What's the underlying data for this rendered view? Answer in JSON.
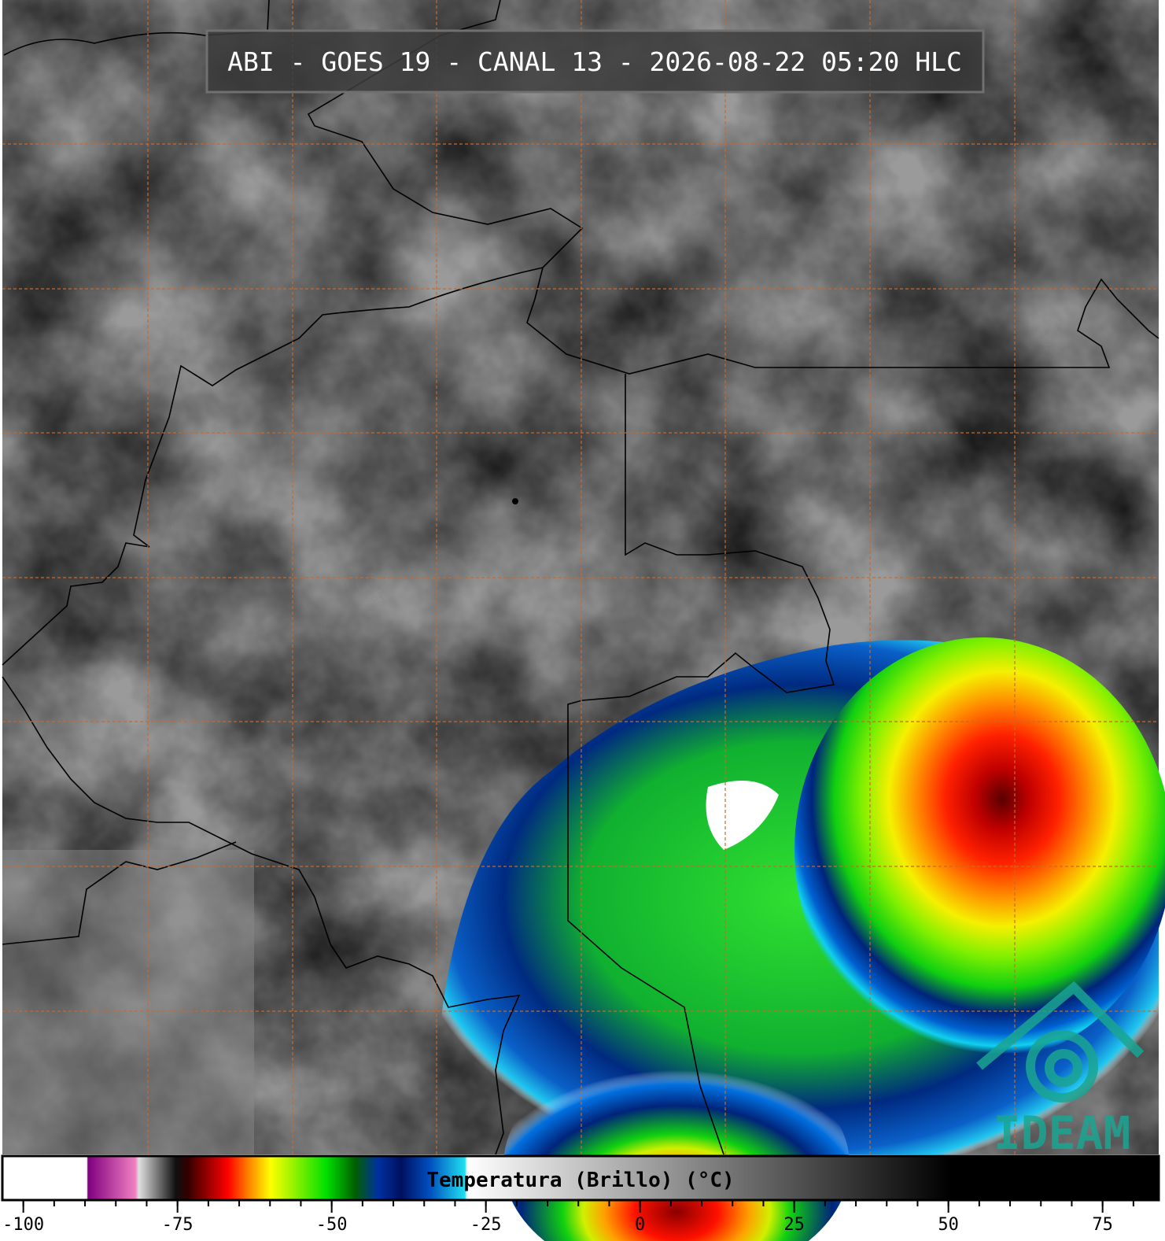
{
  "title": "ABI - GOES 19 - CANAL 13 - 2026-08-22 05:20 HLC",
  "logo": "IDEAM",
  "colorbar": {
    "label": "Temperatura (Brillo) (°C)",
    "range": [
      -103.4,
      84.1
    ],
    "ticks": [
      -100,
      -75,
      -50,
      -25,
      0,
      25,
      50,
      75
    ],
    "minor_step": 5
  }
}
